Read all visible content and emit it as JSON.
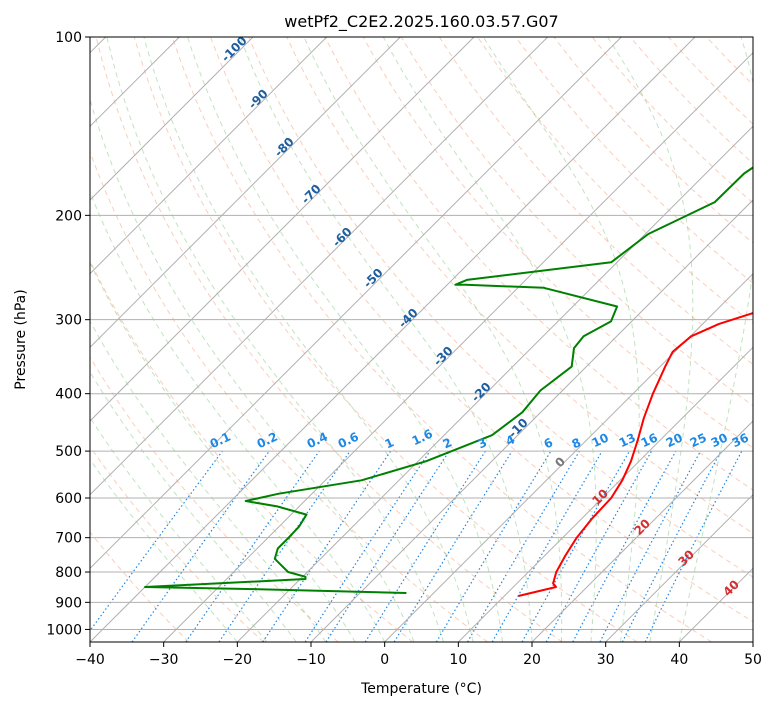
{
  "chart_data": {
    "type": "line",
    "title": "wetPf2_C2E2.2025.160.03.57.G07",
    "xlabel": "Temperature (°C)",
    "ylabel": "Pressure (hPa)",
    "xlim": [
      -40,
      50
    ],
    "ylim": [
      1050,
      100
    ],
    "y_scale": "log",
    "grid": true,
    "x_ticks": [
      "−40",
      "−30",
      "−20",
      "−10",
      "0",
      "10",
      "20",
      "30",
      "40",
      "50"
    ],
    "y_ticks": [
      {
        "p": 100,
        "label": "100"
      },
      {
        "p": 200,
        "label": "200"
      },
      {
        "p": 300,
        "label": "300"
      },
      {
        "p": 400,
        "label": "400"
      },
      {
        "p": 500,
        "label": "500"
      },
      {
        "p": 600,
        "label": "600"
      },
      {
        "p": 700,
        "label": "700"
      },
      {
        "p": 800,
        "label": "800"
      },
      {
        "p": 900,
        "label": "900"
      },
      {
        "p": 1000,
        "label": "1000"
      }
    ],
    "series": [
      {
        "key": "temperature",
        "color": "#ff0000",
        "points": [
          [
            11.9,
            878
          ],
          [
            15.8,
            848
          ],
          [
            14.9,
            836
          ],
          [
            13.8,
            800
          ],
          [
            12.8,
            750
          ],
          [
            11.9,
            700
          ],
          [
            11.4,
            650
          ],
          [
            11.2,
            600
          ],
          [
            10.3,
            560
          ],
          [
            8.9,
            520
          ],
          [
            7.0,
            480
          ],
          [
            4.8,
            440
          ],
          [
            2.7,
            400
          ],
          [
            0.7,
            360
          ],
          [
            -0.3,
            340
          ],
          [
            0.1,
            320
          ],
          [
            2.2,
            305
          ],
          [
            6.0,
            290
          ],
          [
            9.1,
            275
          ],
          [
            10.8,
            255
          ],
          [
            10.8,
            230
          ],
          [
            10.4,
            205
          ],
          [
            10.6,
            185
          ],
          [
            11.8,
            165
          ],
          [
            13.6,
            145
          ],
          [
            13.7,
            133
          ],
          [
            13.7,
            120
          ],
          [
            15.0,
            107
          ],
          [
            16.2,
            100
          ]
        ]
      },
      {
        "key": "dewpoint",
        "color": "#008000",
        "points": [
          [
            -3.7,
            868
          ],
          [
            -25.0,
            855
          ],
          [
            -40.0,
            848
          ],
          [
            -19.3,
            822
          ],
          [
            -19.6,
            815
          ],
          [
            -22.6,
            800
          ],
          [
            -26.2,
            760
          ],
          [
            -27.2,
            730
          ],
          [
            -27.2,
            700
          ],
          [
            -27.3,
            670
          ],
          [
            -27.9,
            640
          ],
          [
            -33.0,
            620
          ],
          [
            -38.0,
            607
          ],
          [
            -34.5,
            590
          ],
          [
            -25.1,
            560
          ],
          [
            -18.9,
            520
          ],
          [
            -13.5,
            470
          ],
          [
            -12.5,
            430
          ],
          [
            -13.0,
            395
          ],
          [
            -12.0,
            360
          ],
          [
            -14.2,
            335
          ],
          [
            -14.5,
            320
          ],
          [
            -12.8,
            302
          ],
          [
            -14.0,
            285
          ],
          [
            -26.5,
            265
          ],
          [
            -37.5,
            262
          ],
          [
            -38.9,
            262
          ],
          [
            -38.0,
            257
          ],
          [
            -20.8,
            240
          ],
          [
            -19.6,
            215
          ],
          [
            -14.9,
            190
          ],
          [
            -14.8,
            170
          ],
          [
            -12.7,
            150
          ],
          [
            -8.7,
            130
          ],
          [
            -4.6,
            115
          ],
          [
            -0.2,
            100
          ]
        ]
      }
    ],
    "annotations": {
      "dry_adiabats": [
        "-100",
        "-90",
        "-80",
        "-70",
        "-60",
        "-50",
        "-40",
        "-30",
        "-20",
        "-10"
      ],
      "mixing_ratios": [
        "0.1",
        "0.2",
        "0.4",
        "0.6",
        "1",
        "1.6",
        "2",
        "3",
        "4",
        "6",
        "8",
        "10",
        "13",
        "16",
        "20",
        "25",
        "30",
        "36"
      ],
      "moist_adiabats": [
        "0",
        "10",
        "20",
        "30",
        "40"
      ]
    }
  }
}
